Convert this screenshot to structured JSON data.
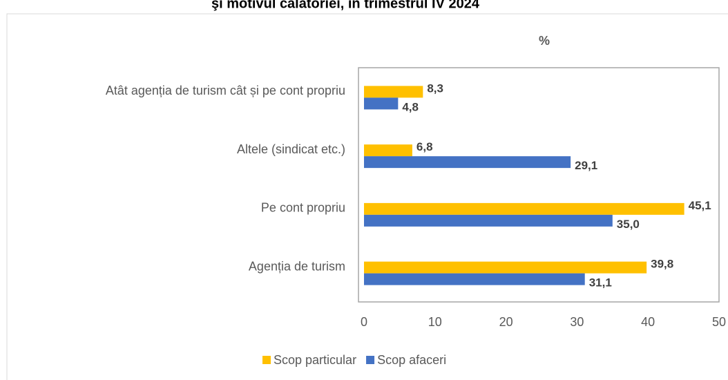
{
  "chart_data": {
    "type": "bar",
    "orientation": "horizontal",
    "title": "şi motivul călătoriei, în trimestrul IV 2024",
    "unit_label": "%",
    "categories": [
      "Atât agenția de turism cât și pe cont propriu",
      "Altele (sindicat etc.)",
      "Pe cont propriu",
      "Agenția de turism"
    ],
    "series": [
      {
        "name": "Scop particular",
        "color": "#ffc000",
        "values": [
          8.3,
          6.8,
          45.1,
          39.8
        ],
        "value_labels": [
          "8,3",
          "6,8",
          "45,1",
          "39,8"
        ]
      },
      {
        "name": "Scop afaceri",
        "color": "#4472c4",
        "values": [
          4.8,
          29.1,
          35.0,
          31.1
        ],
        "value_labels": [
          "4,8",
          "29,1",
          "35,0",
          "31,1"
        ]
      }
    ],
    "xlim": [
      0,
      50
    ],
    "xticks": [
      0,
      10,
      20,
      30,
      40,
      50
    ]
  }
}
